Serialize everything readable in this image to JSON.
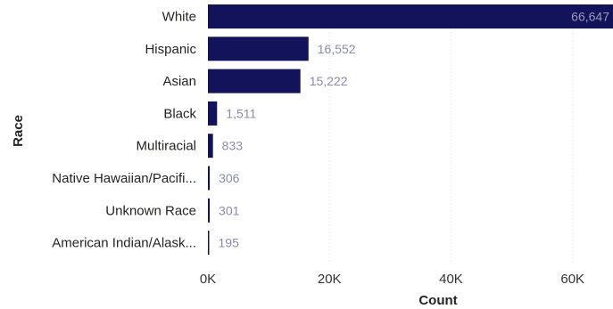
{
  "chart_data": {
    "type": "bar",
    "orientation": "horizontal",
    "categories": [
      "White",
      "Hispanic",
      "Asian",
      "Black",
      "Multiracial",
      "Native Hawaiian/Pacifi...",
      "Unknown Race",
      "American Indian/Alask..."
    ],
    "values": [
      66647,
      16552,
      15222,
      1511,
      833,
      306,
      301,
      195
    ],
    "value_labels": [
      "66,647",
      "16,552",
      "15,222",
      "1,511",
      "833",
      "306",
      "301",
      "195"
    ],
    "xlabel": "Count",
    "ylabel": "Race",
    "x_ticks": [
      {
        "value": 0,
        "label": "0K"
      },
      {
        "value": 20000,
        "label": "20K"
      },
      {
        "value": 40000,
        "label": "40K"
      },
      {
        "value": 60000,
        "label": "60K"
      }
    ],
    "xlim": [
      0,
      66647
    ],
    "grid": "vertical-dotted",
    "bar_color": "#13135c"
  }
}
